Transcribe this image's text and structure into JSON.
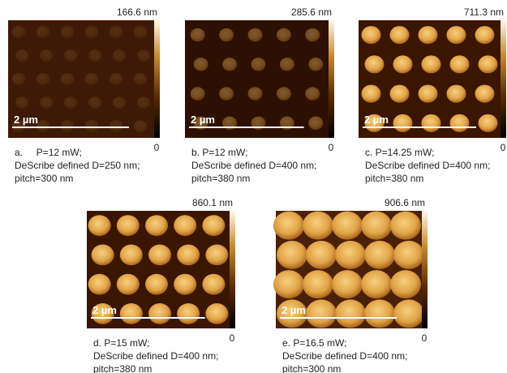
{
  "panels": [
    {
      "max_label": "166.6 nm",
      "min_label": "0",
      "scale_bar": "2 µm",
      "caption": [
        "a.     P=12 mW;",
        "DeScribe defined D=250 nm;",
        "pitch=300 nm"
      ]
    },
    {
      "max_label": "285.6 nm",
      "min_label": "0",
      "scale_bar": "2 µm",
      "caption": [
        "b. P=12 mW;",
        "DeScribe defined D=400 nm;",
        "pitch=380 nm"
      ]
    },
    {
      "max_label": "711.3 nm",
      "min_label": "0",
      "scale_bar": "2 µm",
      "caption": [
        "c. P=14.25 mW;",
        "DeScribe defined D=400 nm;",
        "pitch=380 nm"
      ]
    },
    {
      "max_label": "860.1 nm",
      "min_label": "0",
      "scale_bar": "2 µm",
      "caption": [
        "d. P=15 mW;",
        "DeScribe defined D=400 nm;",
        "pitch=380 nm"
      ]
    },
    {
      "max_label": "906.6 nm",
      "min_label": "0",
      "scale_bar": "2 µm",
      "caption": [
        "e. P=16.5 mW;",
        "DeScribe defined D=400 nm;",
        "pitch=300 nm"
      ]
    }
  ]
}
